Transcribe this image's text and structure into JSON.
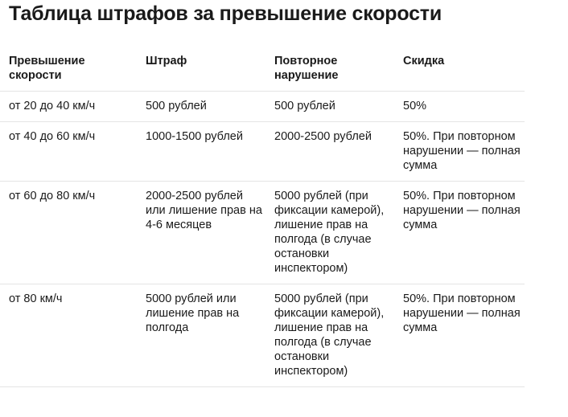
{
  "page": {
    "title": "Таблица штрафов за превышение скорости"
  },
  "table": {
    "headers": [
      "Превышение скорости",
      "Штраф",
      "Повторное нарушение",
      "Скидка"
    ],
    "rows": [
      [
        "от 20 до 40 км/ч",
        "500 рублей",
        "500 рублей",
        "50%"
      ],
      [
        "от 40 до 60 км/ч",
        "1000-1500 рублей",
        "2000-2500 рублей",
        "50%. При повторном нарушении — полная сумма"
      ],
      [
        "от 60 до 80 км/ч",
        "2000-2500 рублей или лишение прав на 4-6 месяцев",
        "5000 рублей (при фиксации камерой), лишение прав на полгода (в случае остановки инспектором)",
        "50%. При повторном нарушении — полная сумма"
      ],
      [
        "от 80 км/ч",
        "5000 рублей или лишение прав на полгода",
        "5000 рублей (при фиксации камерой), лишение прав на полгода (в случае остановки инспектором)",
        "50%. При повторном нарушении — полная сумма"
      ]
    ]
  }
}
